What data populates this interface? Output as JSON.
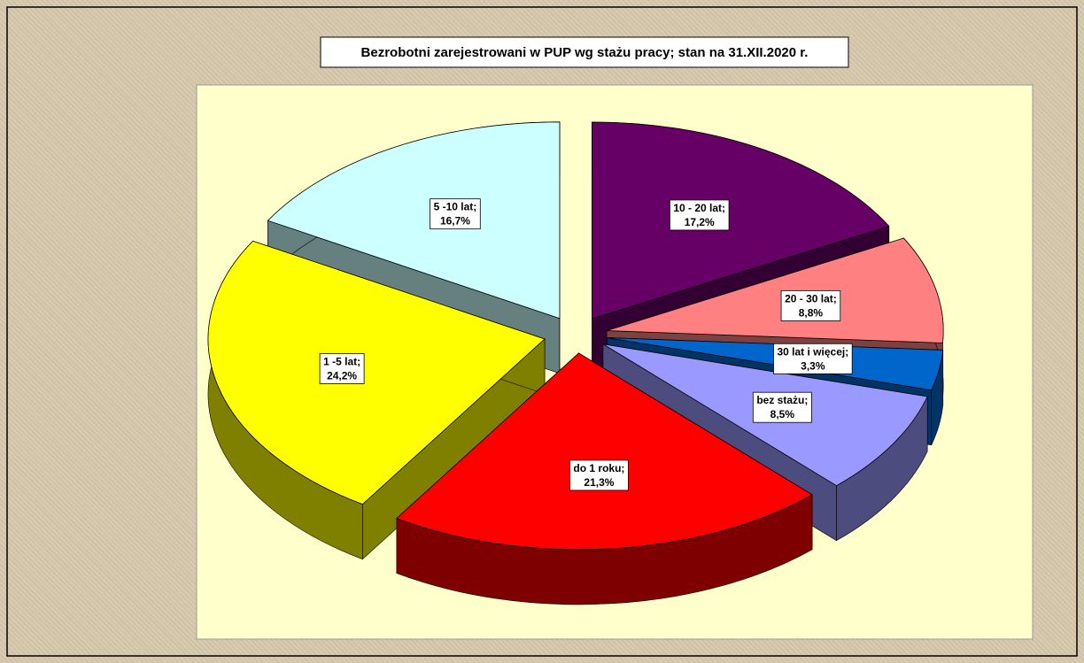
{
  "chart_data": {
    "type": "pie3d",
    "title": "Bezrobotni zarejestrowani w PUP wg stażu pracy; stan na 31.XII.2020 r.",
    "categories": [
      "10 - 20 lat;",
      "20 - 30 lat;",
      "30 lat i więcej;",
      "bez stażu;",
      "do 1 roku;",
      "1 -5 lat;",
      "5 -10 lat;"
    ],
    "values": [
      17.2,
      8.8,
      3.3,
      8.5,
      21.3,
      24.2,
      16.7
    ],
    "value_labels": [
      "17,2%",
      "8,8%",
      "3,3%",
      "8,5%",
      "21,3%",
      "24,2%",
      "16,7%"
    ],
    "colors": [
      "#660066",
      "#FF8080",
      "#0066CC",
      "#9999FF",
      "#FF0000",
      "#FFFF00",
      "#CCFFFF"
    ]
  }
}
